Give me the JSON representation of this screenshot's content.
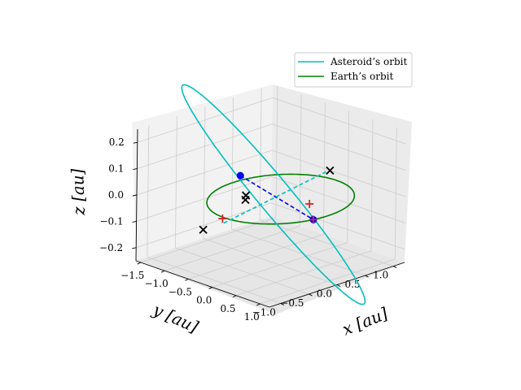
{
  "chart_data": {
    "type": "line",
    "title": "",
    "xlabel": "x [au]",
    "ylabel": "y [au]",
    "zlabel": "z [au]",
    "xlim": [
      -1.6,
      1.2
    ],
    "ylim": [
      -1.2,
      1.2
    ],
    "zlim": [
      -0.25,
      0.25
    ],
    "x_ticks": [
      -1.5,
      -1.0,
      -0.5,
      0.0,
      0.5,
      1.0
    ],
    "y_ticks": [
      -1.0,
      -0.5,
      0.0,
      0.5,
      1.0
    ],
    "z_ticks": [
      -0.2,
      -0.1,
      0.0,
      0.1,
      0.2
    ],
    "x_tick_labels": [
      "−1.5",
      "−1.0",
      "−0.5",
      "0.0",
      "0.5",
      "1.0"
    ],
    "y_tick_labels": [
      "−1.0",
      "−0.5",
      "0.0",
      "0.5",
      "1.0"
    ],
    "z_tick_labels": [
      "−0.2",
      "−0.1",
      "0.0",
      "0.1",
      "0.2"
    ],
    "grid": true,
    "legend_position": "top-right",
    "series": [
      {
        "name": "Asteroid’s orbit",
        "color": "#00bfbf",
        "style": "solid",
        "semi_major_axis": 1.3,
        "eccentricity": 0.17,
        "inclination_deg": 12.5,
        "node_longitude_deg": -14,
        "perihelion_argument_deg": 0
      },
      {
        "name": "Earth’s orbit",
        "color": "#008000",
        "style": "solid",
        "radius": 1.0
      }
    ],
    "lines": [
      {
        "color": "#0000ff",
        "style": "dashed",
        "from": [
          -1.14,
          0.25,
          0.0
        ],
        "to": [
          0.97,
          -0.24,
          0.0
        ]
      },
      {
        "color": "#00bfbf",
        "style": "dashed",
        "from": [
          -1.3,
          0.1,
          -0.18
        ],
        "to": [
          1.0,
          -0.05,
          0.17
        ]
      }
    ],
    "markers": [
      {
        "symbol": "dot",
        "color": "#0000ff",
        "position": [
          -1.14,
          0.25,
          0.0
        ]
      },
      {
        "symbol": "dot",
        "color": "#0000ff",
        "position": [
          0.97,
          -0.24,
          0.0
        ]
      },
      {
        "symbol": "plus",
        "color": "#d62728",
        "position": [
          -1.29,
          0.07,
          -0.16
        ]
      },
      {
        "symbol": "plus",
        "color": "#d62728",
        "position": [
          0.85,
          -0.21,
          0.05
        ]
      },
      {
        "symbol": "plus",
        "color": "#d62728",
        "position": [
          0.97,
          -0.24,
          0.0
        ]
      },
      {
        "symbol": "x",
        "color": "#000000",
        "position": [
          -1.55,
          -0.05,
          -0.21
        ]
      },
      {
        "symbol": "x",
        "color": "#000000",
        "position": [
          1.0,
          0.02,
          0.17
        ]
      },
      {
        "symbol": "x",
        "color": "#000000",
        "position": [
          -0.55,
          -0.15,
          -0.01
        ]
      },
      {
        "symbol": "x",
        "color": "#000000",
        "position": [
          -0.5,
          -0.2,
          -0.02
        ]
      }
    ]
  }
}
